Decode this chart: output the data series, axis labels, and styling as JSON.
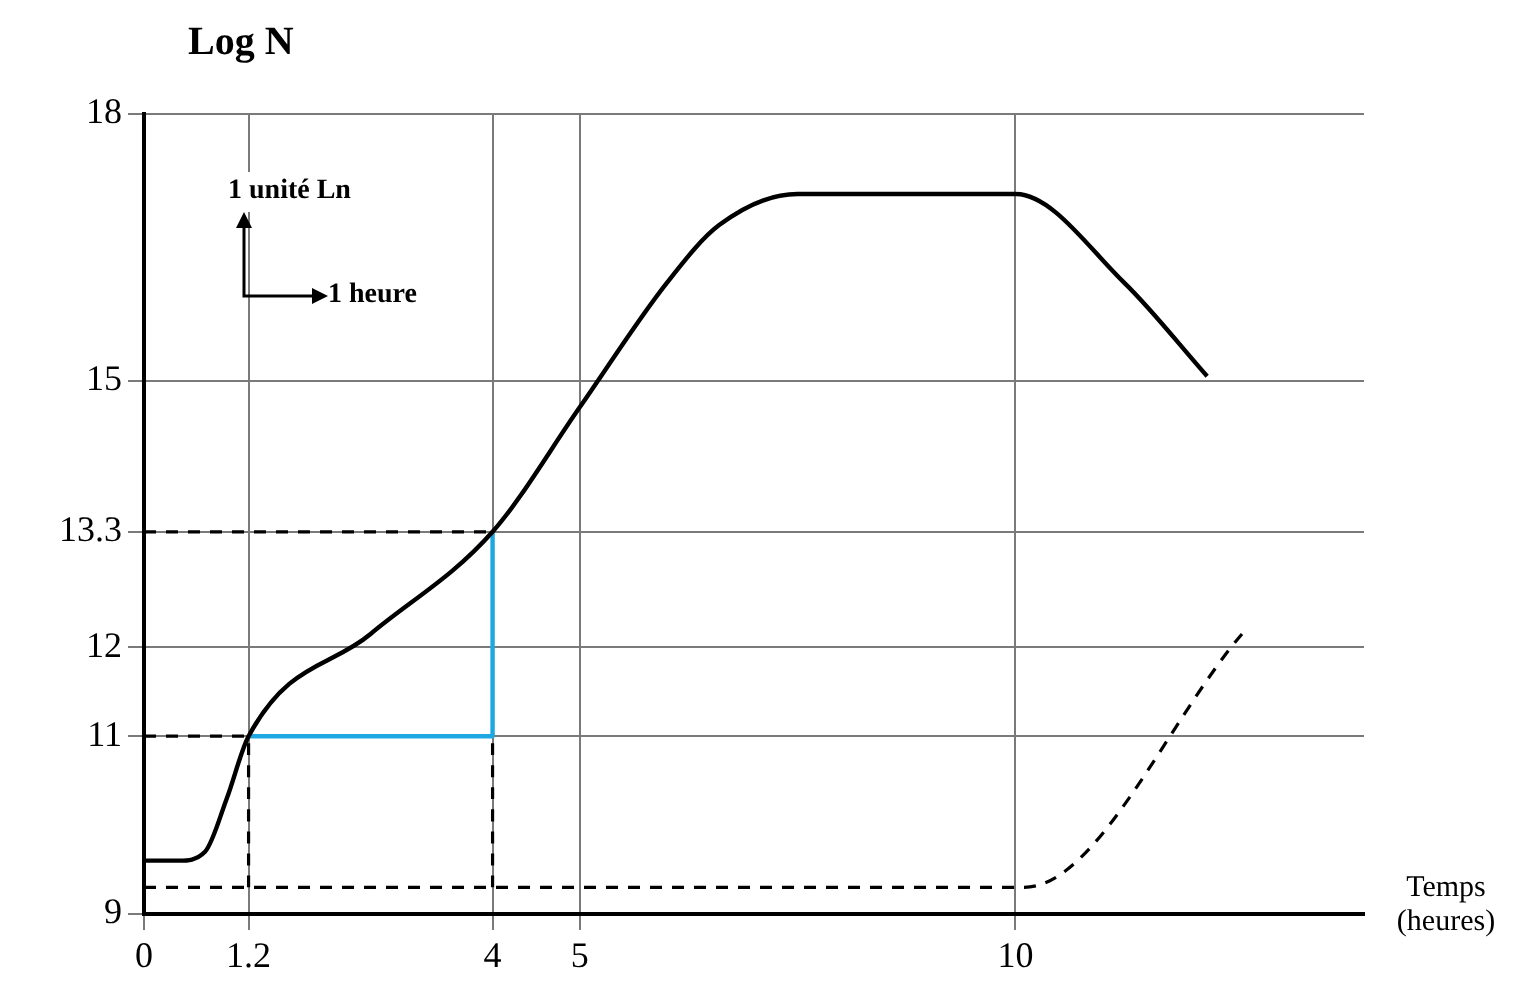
{
  "chart_data": {
    "type": "line",
    "ylabel": "Log N",
    "xlabel": "Temps (heures)",
    "annotations": [
      "1 unité Ln",
      "1 heure"
    ],
    "xlim": [
      0,
      14
    ],
    "ylim": [
      9,
      18
    ],
    "xticks": [
      0,
      1.2,
      4,
      5,
      10
    ],
    "yticks": [
      9,
      11,
      12,
      13.3,
      15,
      18
    ],
    "grid": true,
    "marker": "none",
    "series": [
      {
        "color": "#000000",
        "line_style": "solid",
        "x": [
          0,
          0.4,
          0.7,
          0.95,
          1.2,
          2.6,
          4,
          5,
          6,
          6.6,
          7.5,
          10,
          11.25,
          12.2
        ],
        "values": [
          9.6,
          9.6,
          9.7,
          10.3,
          11,
          12.15,
          13.3,
          14.7,
          16.1,
          16.75,
          17.1,
          17.1,
          16.1,
          15.05
        ]
      },
      {
        "color": "#000000",
        "line_style": "dashed",
        "x": [
          0,
          10.1,
          12.6
        ],
        "values": [
          9.3,
          9.3,
          12.15
        ]
      },
      {
        "color": "#000000",
        "line_style": "dashed",
        "x": [
          0,
          4
        ],
        "values": [
          13.3,
          13.3
        ]
      },
      {
        "color": "#000000",
        "line_style": "dashed",
        "x": [
          0,
          1.2
        ],
        "values": [
          11,
          11
        ]
      },
      {
        "color": "#000000",
        "line_style": "dashed",
        "x": [
          1.2,
          1.2
        ],
        "values": [
          9.3,
          11
        ]
      },
      {
        "color": "#000000",
        "line_style": "dashed",
        "x": [
          4,
          4
        ],
        "values": [
          9.3,
          11
        ]
      },
      {
        "color": "#1ea7e1",
        "line_style": "solid",
        "x": [
          1.2,
          4,
          4
        ],
        "values": [
          11,
          11,
          13.3
        ]
      }
    ]
  }
}
